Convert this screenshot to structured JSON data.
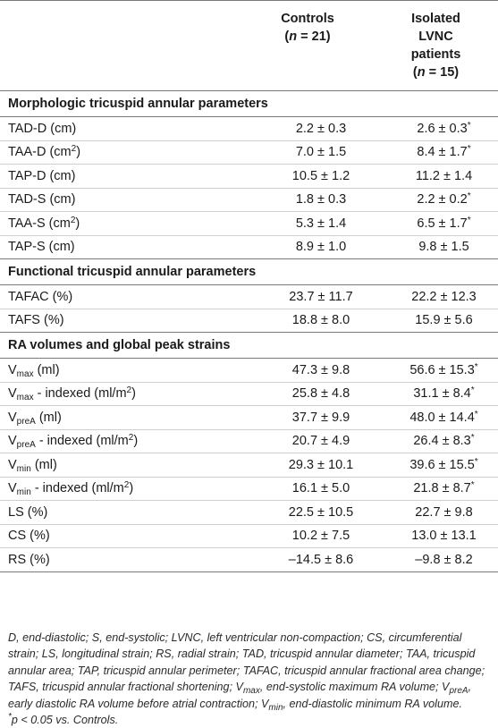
{
  "header": {
    "col_param": "",
    "col_controls": {
      "label": "Controls",
      "n_prefix": "(",
      "n_var": "n",
      "n_value": " = 21)"
    },
    "col_lvnc": {
      "line1": "Isolated",
      "line2": "LVNC",
      "line3": "patients",
      "n_prefix": "(",
      "n_var": "n",
      "n_value": " = 15)"
    }
  },
  "sections": [
    {
      "title": "Morphologic tricuspid annular parameters",
      "rows": [
        {
          "base": "TAD-D (cm)",
          "sub": "",
          "sup": "",
          "tail": "",
          "controls": "2.2 ± 0.3",
          "lvnc": "2.6 ± 0.3",
          "lvnc_sig": "*"
        },
        {
          "base": "TAA-D (cm",
          "sub": "",
          "sup": "2",
          "tail": ")",
          "controls": "7.0 ± 1.5",
          "lvnc": "8.4 ± 1.7",
          "lvnc_sig": "*"
        },
        {
          "base": "TAP-D (cm)",
          "sub": "",
          "sup": "",
          "tail": "",
          "controls": "10.5 ± 1.2",
          "lvnc": "11.2 ± 1.4",
          "lvnc_sig": ""
        },
        {
          "base": "TAD-S (cm)",
          "sub": "",
          "sup": "",
          "tail": "",
          "controls": "1.8 ± 0.3",
          "lvnc": "2.2 ± 0.2",
          "lvnc_sig": "*"
        },
        {
          "base": "TAA-S (cm",
          "sub": "",
          "sup": "2",
          "tail": ")",
          "controls": "5.3 ± 1.4",
          "lvnc": "6.5 ± 1.7",
          "lvnc_sig": "*"
        },
        {
          "base": "TAP-S (cm)",
          "sub": "",
          "sup": "",
          "tail": "",
          "controls": "8.9 ± 1.0",
          "lvnc": "9.8 ± 1.5",
          "lvnc_sig": ""
        }
      ]
    },
    {
      "title": "Functional tricuspid annular parameters",
      "rows": [
        {
          "base": "TAFAC (%)",
          "sub": "",
          "sup": "",
          "tail": "",
          "controls": "23.7 ± 11.7",
          "lvnc": "22.2 ± 12.3",
          "lvnc_sig": ""
        },
        {
          "base": "TAFS (%)",
          "sub": "",
          "sup": "",
          "tail": "",
          "controls": "18.8 ± 8.0",
          "lvnc": "15.9 ± 5.6",
          "lvnc_sig": ""
        }
      ]
    },
    {
      "title": "RA volumes and global peak strains",
      "rows": [
        {
          "base": "V",
          "sub": "max",
          "sup": "",
          "tail": " (ml)",
          "controls": "47.3 ± 9.8",
          "lvnc": "56.6 ± 15.3",
          "lvnc_sig": "*"
        },
        {
          "base": "V",
          "sub": "max",
          "sup": "",
          "tail": " - indexed (ml/m",
          "sup2": "2",
          "tail2": ")",
          "controls": "25.8 ± 4.8",
          "lvnc": "31.1 ± 8.4",
          "lvnc_sig": "*"
        },
        {
          "base": "V",
          "sub": "preA",
          "sup": "",
          "tail": " (ml)",
          "controls": "37.7 ± 9.9",
          "lvnc": "48.0 ± 14.4",
          "lvnc_sig": "*"
        },
        {
          "base": "V",
          "sub": "preA",
          "sup": "",
          "tail": " - indexed (ml/m",
          "sup2": "2",
          "tail2": ")",
          "controls": "20.7 ± 4.9",
          "lvnc": "26.4 ± 8.3",
          "lvnc_sig": "*"
        },
        {
          "base": "V",
          "sub": "min",
          "sup": "",
          "tail": " (ml)",
          "controls": "29.3 ± 10.1",
          "lvnc": "39.6 ± 15.5",
          "lvnc_sig": "*"
        },
        {
          "base": "V",
          "sub": "min",
          "sup": "",
          "tail": " - indexed (ml/m",
          "sup2": "2",
          "tail2": ")",
          "controls": "16.1 ± 5.0",
          "lvnc": "21.8 ± 8.7",
          "lvnc_sig": "*"
        },
        {
          "base": "LS (%)",
          "sub": "",
          "sup": "",
          "tail": "",
          "controls": "22.5 ± 10.5",
          "lvnc": "22.7 ± 9.8",
          "lvnc_sig": ""
        },
        {
          "base": "CS (%)",
          "sub": "",
          "sup": "",
          "tail": "",
          "controls": "10.2 ± 7.5",
          "lvnc": "13.0 ± 13.1",
          "lvnc_sig": ""
        },
        {
          "base": "RS (%)",
          "sub": "",
          "sup": "",
          "tail": "",
          "controls": "–14.5 ± 8.6",
          "lvnc": "–9.8 ± 8.2",
          "lvnc_sig": ""
        }
      ]
    }
  ],
  "footnote": {
    "abbreviations_part1": "D, end-diastolic; S, end-systolic; LVNC, left ventricular non-compaction; CS, circumferential strain; LS, longitudinal strain; RS, radial strain; TAD, tricuspid annular diameter; TAA, tricuspid annular area; TAP, tricuspid annular perimeter; TAFAC, tricuspid annular fractional area change; TAFS, tricuspid annular fractional shortening; V",
    "vmax_sub": "max",
    "abbreviations_part2": ", end-systolic maximum RA volume; V",
    "vprea_sub": "preA",
    "abbreviations_part3": ", early diastolic RA volume before atrial contraction; V",
    "vmin_sub": "min",
    "abbreviations_part4": ", end-diastolic minimum RA volume.",
    "sig_mark": "*",
    "sig_text": "p < 0.05 vs. Controls."
  }
}
